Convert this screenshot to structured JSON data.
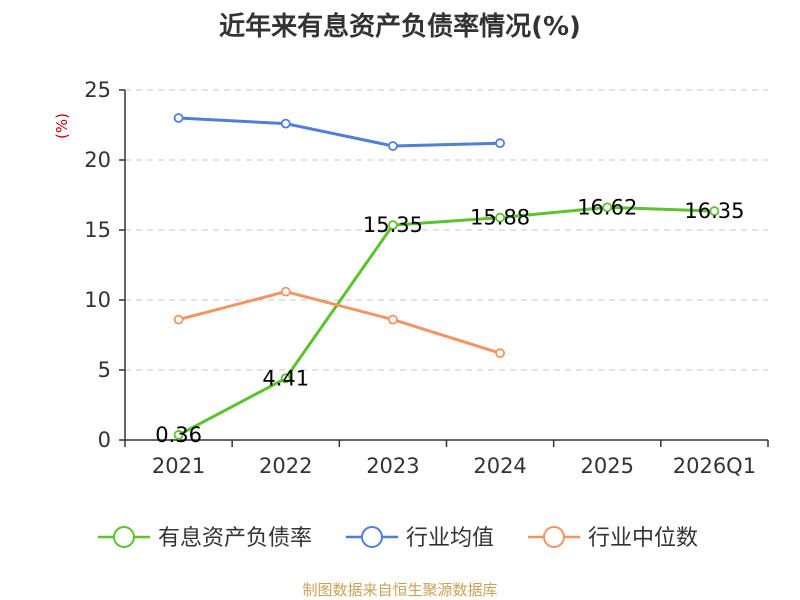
{
  "chart_data": {
    "type": "line",
    "title": "近年来有息资产负债率情况(%)",
    "ylabel": "(%)",
    "ylim": [
      0,
      25
    ],
    "yticks": [
      0,
      5,
      10,
      15,
      20,
      25
    ],
    "categories": [
      "2021",
      "2022",
      "2023",
      "2024",
      "2025",
      "2026Q1"
    ],
    "grid": true,
    "legend_position": "bottom",
    "series": [
      {
        "name": "有息资产负债率",
        "color": "#5dc22f",
        "values": [
          0.36,
          4.41,
          15.35,
          15.88,
          16.62,
          16.35
        ],
        "labels": [
          "0.36",
          "4.41",
          "15.35",
          "15.88",
          "16.62",
          "16.35"
        ]
      },
      {
        "name": "行业均值",
        "color": "#4f7fd9",
        "values": [
          23.0,
          22.6,
          21.0,
          21.2,
          null,
          null
        ]
      },
      {
        "name": "行业中位数",
        "color": "#f59463",
        "values": [
          8.6,
          10.6,
          8.6,
          6.2,
          null,
          null
        ]
      }
    ]
  },
  "source": "制图数据来自恒生聚源数据库"
}
